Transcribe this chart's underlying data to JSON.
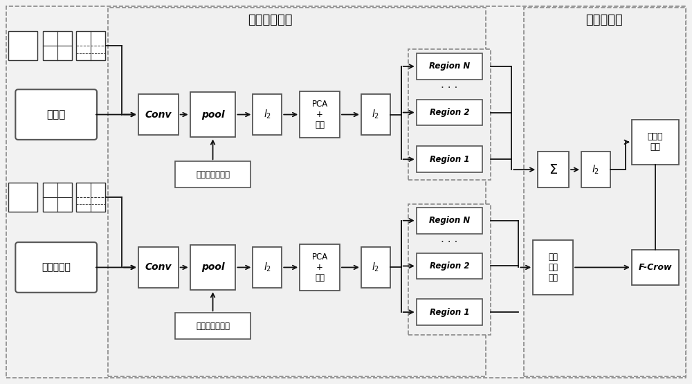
{
  "bg_color": "#f2f2f2",
  "box_fc": "#ffffff",
  "box_ec": "#444444",
  "dash_ec": "#888888",
  "arrow_c": "#111111",
  "section1_label": "近似目标定位",
  "section2_label": "图像重排序",
  "query_label": "查询图",
  "db_label": "待处理图像",
  "conv_label": "Conv",
  "pool_label": "pool",
  "l2_label": "$l_2$",
  "pca_label": "PCA\n+\n白化",
  "weight_label": "空间、通道加权",
  "region_n": "Region N",
  "region_2": "Region 2",
  "region_1": "Region 1",
  "sum_label": "Σ",
  "l2r_label": "$l_2$",
  "target_label": "目标\n定位\n区域",
  "similarity_label": "相似度\n分数",
  "fcrow_label": "F-Crow"
}
